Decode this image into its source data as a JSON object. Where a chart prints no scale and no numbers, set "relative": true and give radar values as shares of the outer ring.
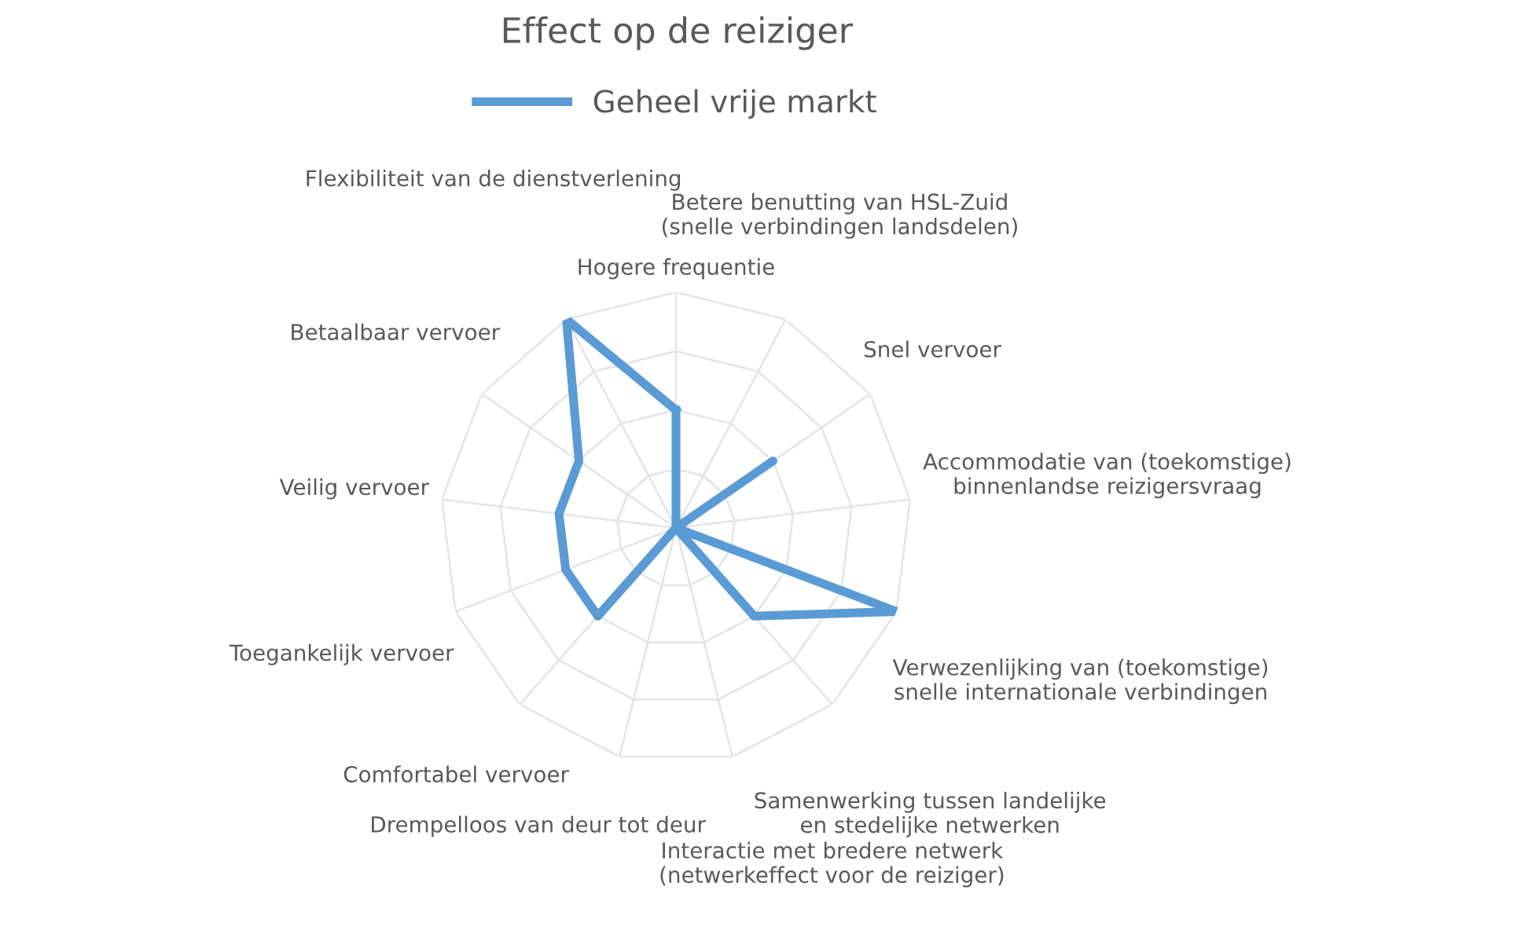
{
  "chart_data": {
    "type": "radar",
    "title": "Effect op de reiziger",
    "relative": true,
    "grid": true,
    "legend": "top",
    "marker": "none",
    "line_style": "solid",
    "categories": [
      "Hogere frequentie",
      "Betere benutting van HSL-Zuid\n(snelle verbindingen landsdelen)",
      "Snel vervoer",
      "Accommodatie van (toekomstige)\nbinnenlandse reizigersvraag",
      "Verwezenlijking van (toekomstige)\nsnelle internationale verbindingen",
      "Samenwerking tussen landelijke\nen stedelijke netwerken",
      "Interactie met bredere netwerk\n(netwerkeffect voor de reiziger)",
      "Drempelloos van deur tot deur",
      "Comfortabel vervoer",
      "Toegankelijk vervoer",
      "Veilig vervoer",
      "Betaalbaar vervoer",
      "Flexibiliteit van de dienstverlening"
    ],
    "series": [
      {
        "name": "Geheel vrije markt",
        "color": "#5b9bd5",
        "values": [
          0.5,
          0,
          0.5,
          0,
          1,
          0.5,
          0,
          0,
          0.5,
          0.5,
          0.5,
          0.5,
          1
        ]
      }
    ]
  }
}
